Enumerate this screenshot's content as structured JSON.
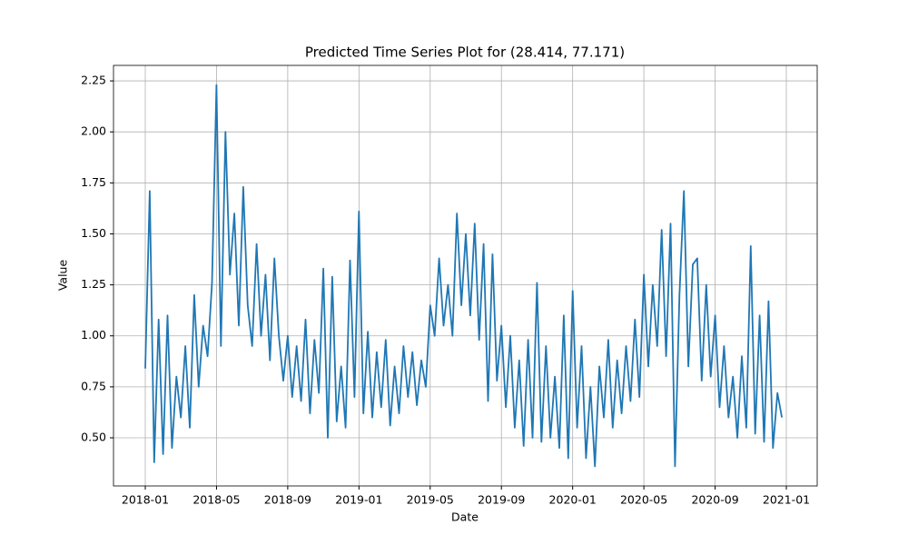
{
  "chart_data": {
    "type": "line",
    "title": "Predicted Time Series Plot for (28.414, 77.171)",
    "x_label": "Date",
    "y_label": "Value",
    "x": [
      "2018-01",
      "2018-01",
      "2018-01",
      "2018-01",
      "2018-02",
      "2018-02",
      "2018-02",
      "2018-02",
      "2018-03",
      "2018-03",
      "2018-03",
      "2018-03",
      "2018-04",
      "2018-04",
      "2018-04",
      "2018-04",
      "2018-05",
      "2018-05",
      "2018-05",
      "2018-05",
      "2018-06",
      "2018-06",
      "2018-06",
      "2018-06",
      "2018-07",
      "2018-07",
      "2018-07",
      "2018-07",
      "2018-08",
      "2018-08",
      "2018-08",
      "2018-08",
      "2018-09",
      "2018-09",
      "2018-09",
      "2018-09",
      "2018-10",
      "2018-10",
      "2018-10",
      "2018-10",
      "2018-11",
      "2018-11",
      "2018-11",
      "2018-11",
      "2018-12",
      "2018-12",
      "2018-12",
      "2018-12",
      "2019-01",
      "2019-01",
      "2019-01",
      "2019-01",
      "2019-02",
      "2019-02",
      "2019-02",
      "2019-02",
      "2019-03",
      "2019-03",
      "2019-03",
      "2019-03",
      "2019-04",
      "2019-04",
      "2019-04",
      "2019-04",
      "2019-05",
      "2019-05",
      "2019-05",
      "2019-05",
      "2019-06",
      "2019-06",
      "2019-06",
      "2019-06",
      "2019-07",
      "2019-07",
      "2019-07",
      "2019-07",
      "2019-08",
      "2019-08",
      "2019-08",
      "2019-08",
      "2019-09",
      "2019-09",
      "2019-09",
      "2019-09",
      "2019-10",
      "2019-10",
      "2019-10",
      "2019-10",
      "2019-11",
      "2019-11",
      "2019-11",
      "2019-11",
      "2019-12",
      "2019-12",
      "2019-12",
      "2019-12",
      "2020-01",
      "2020-01",
      "2020-01",
      "2020-01",
      "2020-02",
      "2020-02",
      "2020-02",
      "2020-02",
      "2020-03",
      "2020-03",
      "2020-03",
      "2020-03",
      "2020-04",
      "2020-04",
      "2020-04",
      "2020-04",
      "2020-05",
      "2020-05",
      "2020-05",
      "2020-05",
      "2020-06",
      "2020-06",
      "2020-06",
      "2020-06",
      "2020-07",
      "2020-07",
      "2020-07",
      "2020-07",
      "2020-08",
      "2020-08",
      "2020-08",
      "2020-08",
      "2020-09",
      "2020-09",
      "2020-09",
      "2020-09",
      "2020-10",
      "2020-10",
      "2020-10",
      "2020-10",
      "2020-11",
      "2020-11",
      "2020-11",
      "2020-11",
      "2020-12",
      "2020-12",
      "2020-12",
      "2020-12"
    ],
    "series": [
      {
        "name": "Value",
        "color": "#1f77b4",
        "values": [
          0.84,
          1.71,
          0.38,
          1.08,
          0.42,
          1.1,
          0.45,
          0.8,
          0.6,
          0.95,
          0.55,
          1.2,
          0.75,
          1.05,
          0.9,
          1.26,
          2.23,
          0.95,
          2.0,
          1.3,
          1.6,
          1.05,
          1.73,
          1.15,
          0.95,
          1.45,
          1.0,
          1.3,
          0.88,
          1.38,
          1.0,
          0.78,
          1.0,
          0.7,
          0.95,
          0.68,
          1.08,
          0.62,
          0.98,
          0.72,
          1.33,
          0.5,
          1.29,
          0.58,
          0.85,
          0.55,
          1.37,
          0.7,
          1.61,
          0.62,
          1.02,
          0.6,
          0.92,
          0.65,
          0.98,
          0.56,
          0.85,
          0.62,
          0.95,
          0.7,
          0.92,
          0.66,
          0.88,
          0.75,
          1.15,
          1.0,
          1.38,
          1.05,
          1.25,
          1.0,
          1.6,
          1.15,
          1.5,
          1.1,
          1.55,
          0.98,
          1.45,
          0.68,
          1.4,
          0.78,
          1.05,
          0.65,
          1.0,
          0.55,
          0.88,
          0.46,
          0.98,
          0.5,
          1.26,
          0.48,
          0.95,
          0.5,
          0.8,
          0.45,
          1.1,
          0.4,
          1.22,
          0.55,
          0.95,
          0.4,
          0.75,
          0.36,
          0.85,
          0.6,
          0.98,
          0.55,
          0.88,
          0.62,
          0.95,
          0.68,
          1.08,
          0.7,
          1.3,
          0.85,
          1.25,
          0.95,
          1.52,
          0.9,
          1.55,
          0.36,
          1.2,
          1.71,
          0.85,
          1.35,
          1.38,
          0.78,
          1.25,
          0.8,
          1.1,
          0.65,
          0.95,
          0.6,
          0.8,
          0.5,
          0.9,
          0.55,
          1.44,
          0.52,
          1.1,
          0.48,
          1.17,
          0.45,
          0.72,
          0.6
        ]
      }
    ],
    "xticks": [
      "2018-01",
      "2018-05",
      "2018-09",
      "2019-01",
      "2019-05",
      "2019-09",
      "2020-01",
      "2020-05",
      "2020-09",
      "2021-01"
    ],
    "ylim": [
      0.264,
      2.326
    ],
    "yticks": [
      {
        "value": 0.5,
        "label": "0.50"
      },
      {
        "value": 0.75,
        "label": "0.75"
      },
      {
        "value": 1.0,
        "label": "1.00"
      },
      {
        "value": 1.25,
        "label": "1.25"
      },
      {
        "value": 1.5,
        "label": "1.50"
      },
      {
        "value": 1.75,
        "label": "1.75"
      },
      {
        "value": 2.0,
        "label": "2.00"
      },
      {
        "value": 2.25,
        "label": "2.25"
      }
    ],
    "grid": true
  }
}
